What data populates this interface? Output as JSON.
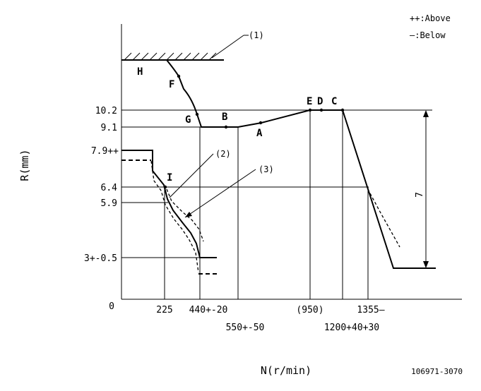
{
  "legend": {
    "above": "++:Above",
    "below": "—:Below"
  },
  "axes": {
    "y_label": "R(mm)",
    "x_label": "N(r/min)",
    "origin": "0"
  },
  "y_ticks": [
    "10.2",
    "9.1",
    "7.9++",
    "6.4",
    "5.9",
    "3+-0.5"
  ],
  "x_ticks": [
    "225",
    "440+-20",
    "550+-50",
    "(950)",
    "1200+40+30",
    "1355—"
  ],
  "points": [
    "H",
    "F",
    "G",
    "B",
    "A",
    "E",
    "D",
    "C",
    "I"
  ],
  "callouts": [
    "(1)",
    "(2)",
    "(3)"
  ],
  "dimension": "7",
  "reference": "106971-3070"
}
